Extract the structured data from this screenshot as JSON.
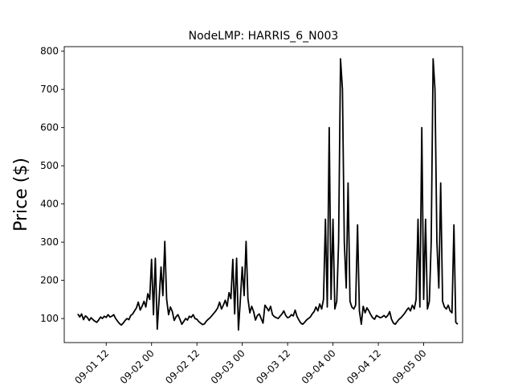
{
  "chart_data": {
    "type": "line",
    "title": "NodeLMP: HARRIS_6_N003",
    "xlabel": "",
    "ylabel": "Price ($)",
    "x_tick_labels": [
      "09-01 12",
      "09-02 00",
      "09-02 12",
      "09-03 00",
      "09-03 12",
      "09-04 00",
      "09-04 12",
      "09-05 00"
    ],
    "x_ticks_hours": [
      12,
      24,
      36,
      48,
      60,
      72,
      84,
      96
    ],
    "xlim_hours": [
      0.9,
      106.3
    ],
    "ylim": [
      37,
      812
    ],
    "y_ticks": [
      100,
      200,
      300,
      400,
      500,
      600,
      700,
      800
    ],
    "grid": false,
    "series": [
      {
        "color": "#000000",
        "points": [
          [
            4.5,
            112
          ],
          [
            5.0,
            104
          ],
          [
            5.5,
            112
          ],
          [
            6.0,
            97
          ],
          [
            6.5,
            107
          ],
          [
            7.0,
            103
          ],
          [
            7.5,
            95
          ],
          [
            8.0,
            102
          ],
          [
            8.5,
            97
          ],
          [
            9.0,
            93
          ],
          [
            9.5,
            90
          ],
          [
            10.0,
            96
          ],
          [
            10.5,
            104
          ],
          [
            11.0,
            100
          ],
          [
            11.5,
            106
          ],
          [
            12.0,
            103
          ],
          [
            12.5,
            110
          ],
          [
            13.0,
            104
          ],
          [
            13.5,
            106
          ],
          [
            14.0,
            110
          ],
          [
            14.5,
            100
          ],
          [
            15.0,
            93
          ],
          [
            15.5,
            87
          ],
          [
            16.0,
            83
          ],
          [
            16.5,
            88
          ],
          [
            17.0,
            95
          ],
          [
            17.5,
            100
          ],
          [
            18.0,
            97
          ],
          [
            18.5,
            108
          ],
          [
            19.0,
            112
          ],
          [
            19.5,
            120
          ],
          [
            20.0,
            128
          ],
          [
            20.5,
            143
          ],
          [
            21.0,
            122
          ],
          [
            21.5,
            132
          ],
          [
            22.0,
            145
          ],
          [
            22.5,
            130
          ],
          [
            23.0,
            165
          ],
          [
            23.5,
            150
          ],
          [
            24.0,
            255
          ],
          [
            24.5,
            110
          ],
          [
            25.0,
            258
          ],
          [
            25.5,
            72
          ],
          [
            26.0,
            150
          ],
          [
            26.5,
            235
          ],
          [
            27.0,
            160
          ],
          [
            27.5,
            302
          ],
          [
            28.0,
            150
          ],
          [
            28.5,
            110
          ],
          [
            29.0,
            130
          ],
          [
            29.5,
            118
          ],
          [
            30.0,
            95
          ],
          [
            30.5,
            105
          ],
          [
            31.0,
            110
          ],
          [
            31.5,
            98
          ],
          [
            32.0,
            85
          ],
          [
            32.5,
            92
          ],
          [
            33.0,
            100
          ],
          [
            33.5,
            96
          ],
          [
            34.0,
            106
          ],
          [
            34.5,
            103
          ],
          [
            35.0,
            110
          ],
          [
            35.5,
            100
          ],
          [
            36.0,
            98
          ],
          [
            36.5,
            92
          ],
          [
            37.0,
            88
          ],
          [
            37.5,
            84
          ],
          [
            38.0,
            86
          ],
          [
            38.5,
            93
          ],
          [
            39.0,
            98
          ],
          [
            39.5,
            102
          ],
          [
            40.0,
            108
          ],
          [
            40.5,
            114
          ],
          [
            41.0,
            120
          ],
          [
            41.5,
            128
          ],
          [
            42.0,
            143
          ],
          [
            42.5,
            125
          ],
          [
            43.0,
            135
          ],
          [
            43.5,
            148
          ],
          [
            44.0,
            132
          ],
          [
            44.5,
            168
          ],
          [
            45.0,
            152
          ],
          [
            45.5,
            255
          ],
          [
            46.0,
            112
          ],
          [
            46.5,
            258
          ],
          [
            47.0,
            70
          ],
          [
            47.5,
            150
          ],
          [
            48.0,
            235
          ],
          [
            48.5,
            160
          ],
          [
            49.0,
            302
          ],
          [
            49.5,
            152
          ],
          [
            50.0,
            115
          ],
          [
            50.5,
            132
          ],
          [
            51.0,
            118
          ],
          [
            51.5,
            96
          ],
          [
            52.0,
            108
          ],
          [
            52.5,
            112
          ],
          [
            53.0,
            100
          ],
          [
            53.5,
            88
          ],
          [
            54.0,
            135
          ],
          [
            54.5,
            128
          ],
          [
            55.0,
            120
          ],
          [
            55.5,
            132
          ],
          [
            56.0,
            110
          ],
          [
            56.5,
            105
          ],
          [
            57.0,
            102
          ],
          [
            57.5,
            100
          ],
          [
            58.0,
            106
          ],
          [
            58.5,
            112
          ],
          [
            59.0,
            120
          ],
          [
            59.5,
            108
          ],
          [
            60.0,
            102
          ],
          [
            60.5,
            104
          ],
          [
            61.0,
            110
          ],
          [
            61.5,
            107
          ],
          [
            62.0,
            122
          ],
          [
            62.5,
            105
          ],
          [
            63.0,
            96
          ],
          [
            63.5,
            88
          ],
          [
            64.0,
            85
          ],
          [
            64.5,
            90
          ],
          [
            65.0,
            96
          ],
          [
            65.5,
            100
          ],
          [
            66.0,
            104
          ],
          [
            66.5,
            112
          ],
          [
            67.0,
            118
          ],
          [
            67.5,
            130
          ],
          [
            68.0,
            120
          ],
          [
            68.5,
            138
          ],
          [
            69.0,
            125
          ],
          [
            69.5,
            150
          ],
          [
            70.0,
            360
          ],
          [
            70.5,
            130
          ],
          [
            71.0,
            600
          ],
          [
            71.5,
            150
          ],
          [
            72.0,
            360
          ],
          [
            72.5,
            125
          ],
          [
            73.0,
            145
          ],
          [
            73.5,
            300
          ],
          [
            74.0,
            780
          ],
          [
            74.5,
            700
          ],
          [
            75.0,
            300
          ],
          [
            75.5,
            180
          ],
          [
            76.0,
            455
          ],
          [
            76.5,
            145
          ],
          [
            77.0,
            130
          ],
          [
            77.5,
            125
          ],
          [
            78.0,
            135
          ],
          [
            78.5,
            345
          ],
          [
            79.0,
            120
          ],
          [
            79.5,
            85
          ],
          [
            80.0,
            132
          ],
          [
            80.5,
            115
          ],
          [
            81.0,
            128
          ],
          [
            81.5,
            120
          ],
          [
            82.0,
            110
          ],
          [
            82.5,
            102
          ],
          [
            83.0,
            98
          ],
          [
            83.5,
            108
          ],
          [
            84.0,
            105
          ],
          [
            84.5,
            102
          ],
          [
            85.0,
            104
          ],
          [
            85.5,
            108
          ],
          [
            86.0,
            103
          ],
          [
            86.5,
            108
          ],
          [
            87.0,
            118
          ],
          [
            87.5,
            98
          ],
          [
            88.0,
            88
          ],
          [
            88.5,
            85
          ],
          [
            89.0,
            92
          ],
          [
            89.5,
            98
          ],
          [
            90.0,
            102
          ],
          [
            90.5,
            108
          ],
          [
            91.0,
            114
          ],
          [
            91.5,
            122
          ],
          [
            92.0,
            128
          ],
          [
            92.5,
            120
          ],
          [
            93.0,
            135
          ],
          [
            93.5,
            125
          ],
          [
            94.0,
            150
          ],
          [
            94.5,
            360
          ],
          [
            95.0,
            130
          ],
          [
            95.5,
            600
          ],
          [
            96.0,
            150
          ],
          [
            96.5,
            360
          ],
          [
            97.0,
            125
          ],
          [
            97.5,
            145
          ],
          [
            98.0,
            300
          ],
          [
            98.5,
            780
          ],
          [
            99.0,
            700
          ],
          [
            99.5,
            300
          ],
          [
            100.0,
            180
          ],
          [
            100.5,
            455
          ],
          [
            101.0,
            145
          ],
          [
            101.5,
            130
          ],
          [
            102.0,
            125
          ],
          [
            102.5,
            135
          ],
          [
            103.0,
            120
          ],
          [
            103.5,
            115
          ],
          [
            104.0,
            345
          ],
          [
            104.5,
            90
          ],
          [
            105.0,
            85
          ]
        ]
      }
    ]
  }
}
